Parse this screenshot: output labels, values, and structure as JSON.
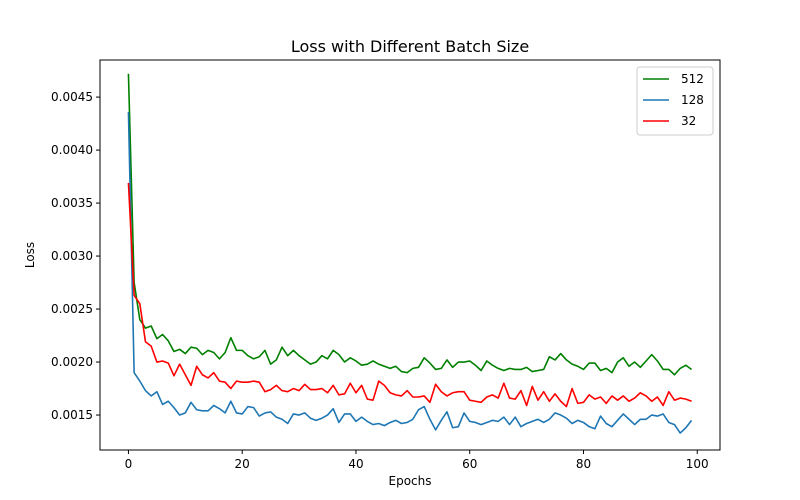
{
  "chart_data": {
    "type": "line",
    "title": "Loss with Different Batch Size",
    "xlabel": "Epochs",
    "ylabel": "Loss",
    "xlim": [
      -5,
      104
    ],
    "ylim": [
      0.00117,
      0.00485
    ],
    "xticks": [
      0,
      20,
      40,
      60,
      80,
      100
    ],
    "xtick_labels": [
      "0",
      "20",
      "40",
      "60",
      "80",
      "100"
    ],
    "yticks": [
      0.0015,
      0.002,
      0.0025,
      0.003,
      0.0035,
      0.004,
      0.0045
    ],
    "ytick_labels": [
      "0.0015",
      "0.0020",
      "0.0025",
      "0.0030",
      "0.0035",
      "0.0040",
      "0.0045"
    ],
    "grid": false,
    "legend_position": "top-right",
    "x": [
      0,
      1,
      2,
      3,
      4,
      5,
      6,
      7,
      8,
      9,
      10,
      11,
      12,
      13,
      14,
      15,
      16,
      17,
      18,
      19,
      20,
      21,
      22,
      23,
      24,
      25,
      26,
      27,
      28,
      29,
      30,
      31,
      32,
      33,
      34,
      35,
      36,
      37,
      38,
      39,
      40,
      41,
      42,
      43,
      44,
      45,
      46,
      47,
      48,
      49,
      50,
      51,
      52,
      53,
      54,
      55,
      56,
      57,
      58,
      59,
      60,
      61,
      62,
      63,
      64,
      65,
      66,
      67,
      68,
      69,
      70,
      71,
      72,
      73,
      74,
      75,
      76,
      77,
      78,
      79,
      80,
      81,
      82,
      83,
      84,
      85,
      86,
      87,
      88,
      89,
      90,
      91,
      92,
      93,
      94,
      95,
      96,
      97,
      98,
      99
    ],
    "series": [
      {
        "name": "512",
        "color": "#008000",
        "values": [
          0.00472,
          0.00275,
          0.0024,
          0.00232,
          0.00234,
          0.00222,
          0.00226,
          0.0022,
          0.0021,
          0.00212,
          0.00208,
          0.00214,
          0.00213,
          0.00207,
          0.00211,
          0.00209,
          0.00203,
          0.00209,
          0.00223,
          0.00211,
          0.00211,
          0.00206,
          0.00203,
          0.00205,
          0.00211,
          0.00198,
          0.00202,
          0.00214,
          0.00206,
          0.00211,
          0.00206,
          0.00202,
          0.00198,
          0.002,
          0.00206,
          0.00203,
          0.00211,
          0.00207,
          0.002,
          0.00204,
          0.00201,
          0.00197,
          0.00198,
          0.00201,
          0.00198,
          0.00196,
          0.00194,
          0.00196,
          0.00191,
          0.0019,
          0.00194,
          0.00195,
          0.00204,
          0.00199,
          0.00193,
          0.00194,
          0.00202,
          0.00195,
          0.002,
          0.002,
          0.00201,
          0.00197,
          0.00192,
          0.00201,
          0.00197,
          0.00194,
          0.00192,
          0.00194,
          0.00193,
          0.00193,
          0.00195,
          0.00191,
          0.00192,
          0.00193,
          0.00205,
          0.00202,
          0.00208,
          0.00202,
          0.00198,
          0.00196,
          0.00193,
          0.00199,
          0.00199,
          0.00192,
          0.00194,
          0.0019,
          0.002,
          0.00204,
          0.00196,
          0.002,
          0.00195,
          0.00201,
          0.00207,
          0.00201,
          0.00193,
          0.00193,
          0.00188,
          0.00194,
          0.00197,
          0.00193
        ]
      },
      {
        "name": "128",
        "color": "#1f77b4",
        "values": [
          0.00436,
          0.0019,
          0.00182,
          0.00173,
          0.00168,
          0.00172,
          0.0016,
          0.00163,
          0.00157,
          0.0015,
          0.00152,
          0.00162,
          0.00155,
          0.00154,
          0.00154,
          0.00159,
          0.00156,
          0.00152,
          0.00163,
          0.00152,
          0.00151,
          0.00158,
          0.00157,
          0.00149,
          0.00152,
          0.00153,
          0.00148,
          0.00146,
          0.00142,
          0.00151,
          0.0015,
          0.00152,
          0.00147,
          0.00145,
          0.00147,
          0.0015,
          0.00156,
          0.00143,
          0.00151,
          0.00151,
          0.00144,
          0.00148,
          0.00144,
          0.00141,
          0.00142,
          0.0014,
          0.00143,
          0.00145,
          0.00142,
          0.00143,
          0.00146,
          0.00155,
          0.00158,
          0.00146,
          0.00136,
          0.00145,
          0.00153,
          0.00138,
          0.00139,
          0.00152,
          0.00144,
          0.00143,
          0.00141,
          0.00143,
          0.00145,
          0.00144,
          0.00148,
          0.00141,
          0.00148,
          0.00139,
          0.00142,
          0.00144,
          0.00146,
          0.00143,
          0.00146,
          0.00152,
          0.0015,
          0.00147,
          0.00142,
          0.00145,
          0.00143,
          0.00139,
          0.00137,
          0.00149,
          0.00142,
          0.00139,
          0.00145,
          0.00151,
          0.00146,
          0.00141,
          0.00146,
          0.00146,
          0.0015,
          0.00149,
          0.00151,
          0.00143,
          0.00141,
          0.00133,
          0.00138,
          0.00145
        ]
      },
      {
        "name": "32",
        "color": "#ff0000",
        "values": [
          0.00369,
          0.00263,
          0.00255,
          0.00219,
          0.00215,
          0.002,
          0.00201,
          0.00199,
          0.00187,
          0.00198,
          0.00188,
          0.00178,
          0.00196,
          0.00188,
          0.00185,
          0.0019,
          0.00182,
          0.00181,
          0.00175,
          0.00182,
          0.00181,
          0.00181,
          0.00182,
          0.00181,
          0.00172,
          0.00174,
          0.00178,
          0.00173,
          0.00172,
          0.00175,
          0.00173,
          0.00179,
          0.00174,
          0.00174,
          0.00175,
          0.00171,
          0.00178,
          0.00169,
          0.0017,
          0.0018,
          0.00171,
          0.00178,
          0.00165,
          0.00164,
          0.00182,
          0.00178,
          0.00171,
          0.00169,
          0.00168,
          0.00173,
          0.00167,
          0.00167,
          0.00168,
          0.00162,
          0.00179,
          0.00172,
          0.00168,
          0.00171,
          0.00172,
          0.00172,
          0.00164,
          0.00163,
          0.00162,
          0.00167,
          0.00169,
          0.00166,
          0.0018,
          0.00166,
          0.00165,
          0.00173,
          0.00159,
          0.00177,
          0.00164,
          0.00172,
          0.00163,
          0.0017,
          0.00163,
          0.00158,
          0.00175,
          0.00161,
          0.00162,
          0.00169,
          0.00165,
          0.00167,
          0.00161,
          0.00168,
          0.00164,
          0.00168,
          0.00163,
          0.00166,
          0.00171,
          0.00168,
          0.00163,
          0.00167,
          0.00159,
          0.00172,
          0.00164,
          0.00166,
          0.00165,
          0.00163
        ]
      }
    ]
  }
}
